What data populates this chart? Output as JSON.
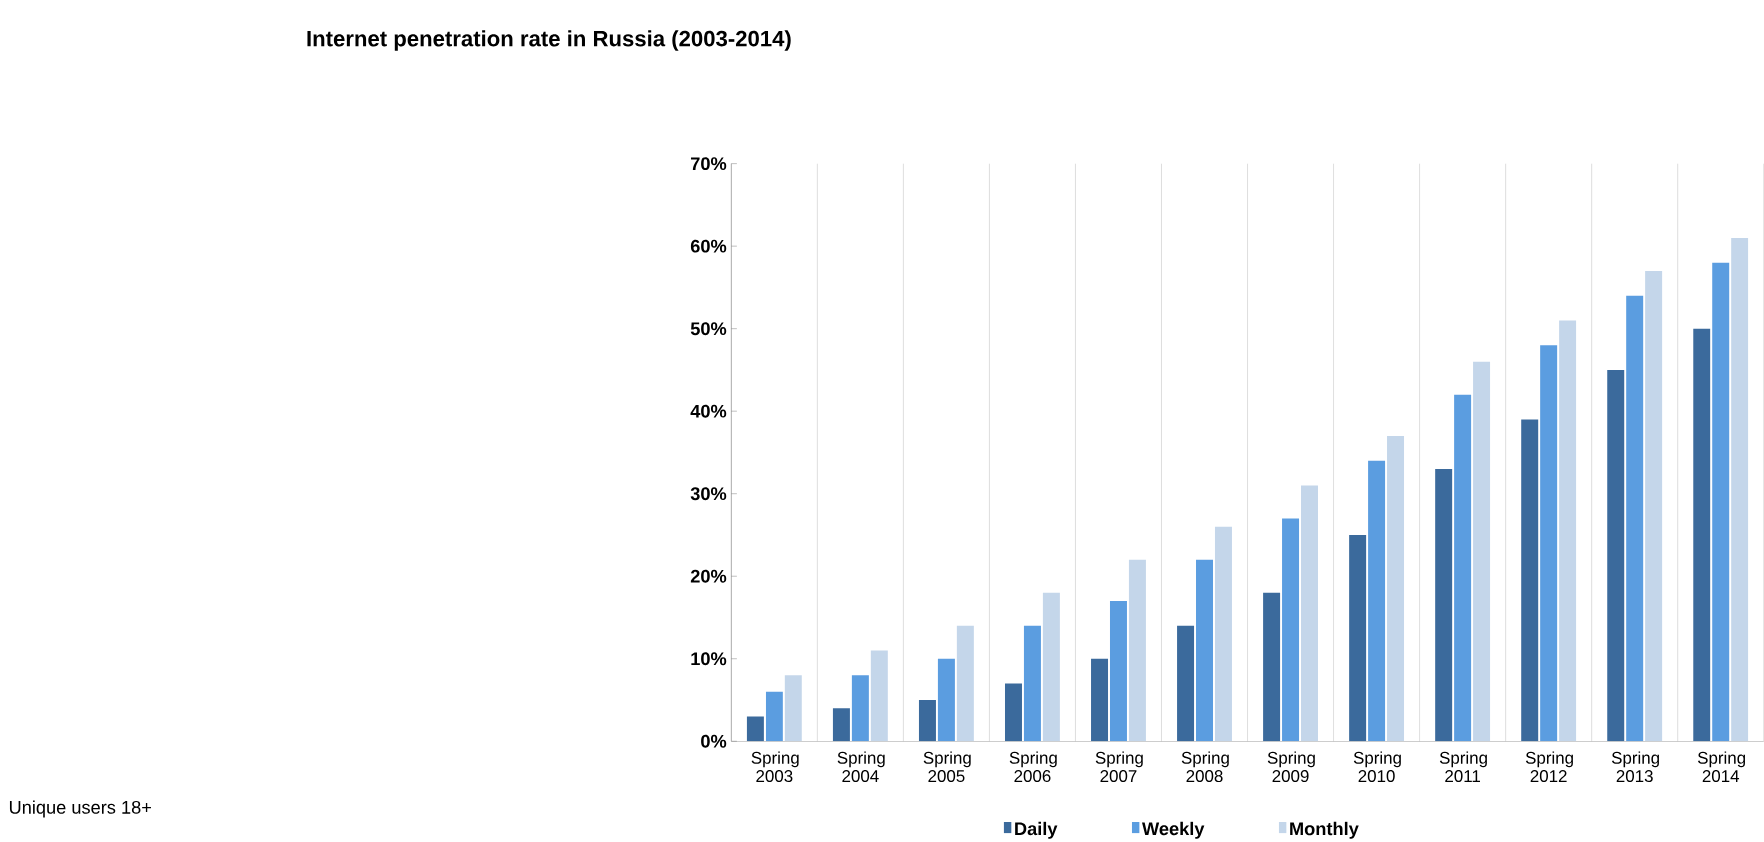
{
  "chart_data": {
    "type": "bar",
    "title": "Internet penetration rate in Russia (2003-2014)",
    "categories": [
      "Spring 2003",
      "Spring 2004",
      "Spring 2005",
      "Spring 2006",
      "Spring 2007",
      "Spring 2008",
      "Spring 2009",
      "Spring 2010",
      "Spring 2011",
      "Spring 2012",
      "Spring 2013",
      "Spring 2014"
    ],
    "series": [
      {
        "name": "Daily",
        "color": "#3b6a9c",
        "values": [
          3,
          4,
          5,
          7,
          10,
          14,
          18,
          25,
          33,
          39,
          45,
          50
        ]
      },
      {
        "name": "Weekly",
        "color": "#5b9de0",
        "values": [
          6,
          8,
          10,
          14,
          17,
          22,
          27,
          34,
          42,
          48,
          54,
          58
        ]
      },
      {
        "name": "Monthly",
        "color": "#c4d6ea",
        "values": [
          8,
          11,
          14,
          18,
          22,
          26,
          31,
          37,
          46,
          51,
          57,
          61
        ]
      }
    ],
    "ylim": [
      0,
      70
    ],
    "yticks": [
      {
        "value": 0,
        "label": "0%"
      },
      {
        "value": 10,
        "label": "10%"
      },
      {
        "value": 20,
        "label": "20%"
      },
      {
        "value": 30,
        "label": "30%"
      },
      {
        "value": 40,
        "label": "40%"
      },
      {
        "value": 50,
        "label": "50%"
      },
      {
        "value": 60,
        "label": "60%"
      },
      {
        "value": 70,
        "label": "70%"
      }
    ],
    "grid": "x",
    "legend": "bottom",
    "annotations": [
      "Unique users 18+"
    ]
  }
}
